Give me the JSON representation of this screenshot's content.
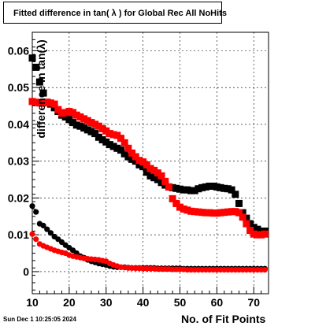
{
  "chart_data": {
    "type": "scatter",
    "title": "Fitted difference in tan( λ ) for Global Rec All NoHits",
    "xlabel": "No. of Fit Points",
    "ylabel": "difference in tan(λ)",
    "xlim": [
      10,
      74
    ],
    "ylim": [
      -0.006,
      0.065
    ],
    "xticks": [
      10,
      20,
      30,
      40,
      50,
      60,
      70
    ],
    "yticks": [
      0,
      0.01,
      0.02,
      0.03,
      0.04,
      0.05,
      0.06
    ],
    "ytick_labels": [
      "0",
      "0.01",
      "0.02",
      "0.03",
      "0.04",
      "0.05",
      "0.06"
    ],
    "grid": true,
    "series": [
      {
        "marker": "square",
        "color": "#000000",
        "x": [
          10,
          11,
          12,
          13,
          14,
          15,
          16,
          17,
          18,
          19,
          20,
          21,
          22,
          23,
          24,
          25,
          26,
          27,
          28,
          29,
          30,
          31,
          32,
          33,
          34,
          35,
          36,
          37,
          38,
          39,
          40,
          41,
          42,
          43,
          44,
          45,
          46,
          47,
          48,
          49,
          50,
          51,
          52,
          53,
          54,
          55,
          56,
          57,
          58,
          59,
          60,
          61,
          62,
          63,
          64,
          65,
          66,
          67,
          68,
          69,
          70,
          71,
          72,
          73
        ],
        "y": [
          0.058,
          0.0555,
          0.0515,
          0.0485,
          0.046,
          0.0455,
          0.0445,
          0.0435,
          0.0425,
          0.042,
          0.0413,
          0.0405,
          0.0398,
          0.0395,
          0.039,
          0.0385,
          0.038,
          0.0375,
          0.0365,
          0.0358,
          0.0352,
          0.0345,
          0.034,
          0.0335,
          0.033,
          0.032,
          0.0312,
          0.0305,
          0.03,
          0.029,
          0.0285,
          0.027,
          0.026,
          0.0255,
          0.025,
          0.0242,
          0.0235,
          0.023,
          0.0228,
          0.0226,
          0.0224,
          0.0222,
          0.0222,
          0.022,
          0.022,
          0.0225,
          0.0228,
          0.023,
          0.0232,
          0.0232,
          0.023,
          0.0228,
          0.0226,
          0.0225,
          0.0222,
          0.021,
          0.0185,
          0.016,
          0.0145,
          0.013,
          0.012,
          0.0115,
          0.011,
          0.011
        ]
      },
      {
        "marker": "square",
        "color": "#ff0000",
        "x": [
          10,
          11,
          12,
          13,
          14,
          15,
          16,
          17,
          18,
          19,
          20,
          21,
          22,
          23,
          24,
          25,
          26,
          27,
          28,
          29,
          30,
          31,
          32,
          33,
          34,
          35,
          36,
          37,
          38,
          39,
          40,
          41,
          42,
          43,
          44,
          45,
          46,
          47,
          48,
          49,
          50,
          51,
          52,
          53,
          54,
          55,
          56,
          57,
          58,
          59,
          60,
          61,
          62,
          63,
          64,
          65,
          66,
          67,
          68,
          69,
          70,
          71,
          72,
          73
        ],
        "y": [
          0.0462,
          0.046,
          0.0458,
          0.0458,
          0.046,
          0.0458,
          0.0455,
          0.044,
          0.043,
          0.0432,
          0.0435,
          0.0432,
          0.0425,
          0.042,
          0.0415,
          0.041,
          0.0405,
          0.04,
          0.0395,
          0.0388,
          0.0382,
          0.0375,
          0.0372,
          0.037,
          0.0362,
          0.035,
          0.0335,
          0.0322,
          0.0312,
          0.0302,
          0.0298,
          0.029,
          0.028,
          0.0275,
          0.0268,
          0.026,
          0.0245,
          0.023,
          0.0198,
          0.0185,
          0.0175,
          0.017,
          0.0167,
          0.0164,
          0.0163,
          0.0162,
          0.0161,
          0.016,
          0.016,
          0.0159,
          0.0159,
          0.016,
          0.0161,
          0.0162,
          0.0163,
          0.0163,
          0.016,
          0.0148,
          0.013,
          0.0112,
          0.0102,
          0.01,
          0.01,
          0.0102
        ]
      },
      {
        "marker": "circle",
        "color": "#000000",
        "x": [
          10,
          11,
          12,
          13,
          14,
          15,
          16,
          17,
          18,
          19,
          20,
          21,
          22,
          23,
          24,
          25,
          26,
          27,
          28,
          29,
          30,
          31,
          32,
          33,
          34,
          35,
          36,
          37,
          38,
          39,
          40,
          41,
          42,
          43,
          44,
          45,
          46,
          47,
          48,
          49,
          50,
          51,
          52,
          53,
          54,
          55,
          56,
          57,
          58,
          59,
          60,
          61,
          62,
          63,
          64,
          65,
          66,
          67,
          68,
          69,
          70,
          71,
          72,
          73
        ],
        "y": [
          0.0178,
          0.0162,
          0.013,
          0.0125,
          0.0115,
          0.0105,
          0.0095,
          0.0088,
          0.008,
          0.0072,
          0.0065,
          0.0058,
          0.005,
          0.0042,
          0.0038,
          0.0032,
          0.0028,
          0.0025,
          0.0022,
          0.002,
          0.0018,
          0.0015,
          0.0013,
          0.0012,
          0.0012,
          0.0012,
          0.0011,
          0.001,
          0.001,
          0.001,
          0.001,
          0.001,
          0.001,
          0.001,
          0.0009,
          0.0009,
          0.0009,
          0.0009,
          0.0009,
          0.0009,
          0.0009,
          0.0008,
          0.0008,
          0.0008,
          0.0008,
          0.0008,
          0.0008,
          0.0008,
          0.0008,
          0.0008,
          0.0008,
          0.0008,
          0.0008,
          0.0008,
          0.0008,
          0.0008,
          0.0008,
          0.0008,
          0.0008,
          0.0008,
          0.0008,
          0.0008,
          0.0008,
          0.0008
        ]
      },
      {
        "marker": "circle",
        "color": "#ff0000",
        "x": [
          10,
          11,
          12,
          13,
          14,
          15,
          16,
          17,
          18,
          19,
          20,
          21,
          22,
          23,
          24,
          25,
          26,
          27,
          28,
          29,
          30,
          31,
          32,
          33,
          34,
          35,
          36,
          37,
          38,
          39,
          40,
          41,
          42,
          43,
          44,
          45,
          46,
          47,
          48,
          49,
          50,
          51,
          52,
          53,
          54,
          55,
          56,
          57,
          58,
          59,
          60,
          61,
          62,
          63,
          64,
          65,
          66,
          67,
          68,
          69,
          70,
          71,
          72,
          73
        ],
        "y": [
          0.0102,
          0.0088,
          0.0075,
          0.007,
          0.0066,
          0.0062,
          0.0058,
          0.0055,
          0.0052,
          0.005,
          0.0045,
          0.0042,
          0.004,
          0.0038,
          0.0036,
          0.0035,
          0.0034,
          0.0033,
          0.0032,
          0.003,
          0.0028,
          0.0022,
          0.0018,
          0.0015,
          0.0012,
          0.0011,
          0.001,
          0.001,
          0.0009,
          0.0009,
          0.0008,
          0.0008,
          0.0008,
          0.0008,
          0.0007,
          0.0007,
          0.0007,
          0.0007,
          0.0006,
          0.0006,
          0.0006,
          0.0006,
          0.0005,
          0.0005,
          0.0005,
          0.0005,
          0.0005,
          0.0005,
          0.0005,
          0.0005,
          0.0005,
          0.0005,
          0.0005,
          0.0005,
          0.0005,
          0.0005,
          0.0005,
          0.0005,
          0.0005,
          0.0005,
          0.0005,
          0.0005,
          0.0005,
          0.0005
        ]
      }
    ]
  },
  "footer": {
    "timestamp": "Sun Dec  1 10:25:05 2024"
  }
}
